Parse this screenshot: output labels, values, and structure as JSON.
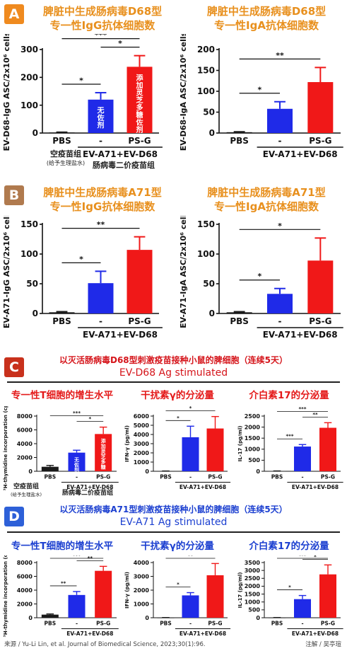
{
  "section_a": {
    "badge": "A",
    "title_igg": [
      "脾脏中生成肠病毒D68型",
      "专一性IgG抗体细胞数"
    ],
    "title_iga": [
      "脾脏中生成肠病毒D68型",
      "专一性IgA抗体细胞数"
    ],
    "igg_left_anno": [
      "空疫苗组",
      "(给予生理盐水)"
    ],
    "igg_right_anno": "肠病毒二价疫苗组"
  },
  "section_b": {
    "badge": "B",
    "title_igg": [
      "脾脏中生成肠病毒A71型",
      "专一性IgG抗体细胞数"
    ],
    "title_iga": [
      "脾脏中生成肠病毒A71型",
      "专一性IgA抗体细胞数"
    ]
  },
  "section_c": {
    "badge": "C",
    "banner_cn": "以灭活肠病毒D68型刺激疫苗接种小鼠的脾细胞（连续5天）",
    "banner_en": "EV-D68 Ag stimulated",
    "sub1": "专一性T细胞的增生水平",
    "sub2": "干扰素γ的分泌量",
    "sub3": "介白素17的分泌量",
    "left_anno": [
      "空疫苗组",
      "(给予生理盐水)"
    ],
    "right_anno": "肠病毒二价疫苗组"
  },
  "section_d": {
    "badge": "D",
    "banner_cn": "以灭活肠病毒A71型刺激疫苗接种小鼠的脾细胞（连续5天）",
    "banner_en": "EV-A71 Ag stimulated",
    "sub1": "专一性T细胞的增生水平",
    "sub2": "干扰素γ的分泌量",
    "sub3": "介白素17的分泌量"
  },
  "footer": {
    "source": "来源 / Yu-Li Lin, et al. Journal of Biomedical Science, 2023;30(1):96.",
    "annotator": "注解 / 吴亭瑄"
  },
  "colors": {
    "pbs": "#1a1a1a",
    "no_adjuvant": "#1f2ae8",
    "psg": "#f01818",
    "badge_orange": "#ef8a1f",
    "badge_brown": "#b07a4e",
    "badge_red": "#c8311c",
    "badge_blue": "#2d60d8"
  },
  "chart_data": [
    {
      "id": "a_igg",
      "type": "bar",
      "ylabel": "EV-D68-IgG ASC/2x10⁶ cells",
      "ylim": [
        0,
        300
      ],
      "yticks": [
        0,
        100,
        200,
        300
      ],
      "categories": [
        "PBS",
        "-",
        "PS-G"
      ],
      "group_label": "EV-A71+EV-D68",
      "values": [
        2,
        120,
        238
      ],
      "errors": [
        1,
        25,
        40
      ],
      "bar_texts": [
        "",
        "无佐剂",
        "添加灵芝多糖佐剂"
      ],
      "significance": [
        [
          "PBS",
          "-",
          "*"
        ],
        [
          "PBS",
          "PS-G",
          "***"
        ],
        [
          "-",
          "PS-G",
          "*"
        ]
      ]
    },
    {
      "id": "a_iga",
      "type": "bar",
      "ylabel": "EV-D68-IgA ASC/2x10⁶ cells",
      "ylim": [
        0,
        200
      ],
      "yticks": [
        0,
        50,
        100,
        150,
        200
      ],
      "categories": [
        "PBS",
        "-",
        "PS-G"
      ],
      "group_label": "EV-A71+EV-D68",
      "values": [
        2,
        58,
        122
      ],
      "errors": [
        1,
        17,
        35
      ],
      "significance": [
        [
          "PBS",
          "-",
          "*"
        ],
        [
          "PBS",
          "PS-G",
          "**"
        ]
      ]
    },
    {
      "id": "b_igg",
      "type": "bar",
      "ylabel": "EV-A71-IgG ASC/2x10⁶ cells",
      "ylim": [
        0,
        150
      ],
      "yticks": [
        0,
        50,
        100,
        150
      ],
      "categories": [
        "PBS",
        "-",
        "PS-G"
      ],
      "group_label": "EV-A71+EV-D68",
      "values": [
        2,
        51,
        107
      ],
      "errors": [
        1,
        20,
        22
      ],
      "significance": [
        [
          "PBS",
          "-",
          "*"
        ],
        [
          "PBS",
          "PS-G",
          "**"
        ]
      ]
    },
    {
      "id": "b_iga",
      "type": "bar",
      "ylabel": "EV-A71-IgA ASC/2x10⁶ cells",
      "ylim": [
        0,
        150
      ],
      "yticks": [
        0,
        50,
        100,
        150
      ],
      "categories": [
        "PBS",
        "-",
        "PS-G"
      ],
      "group_label": "EV-A71+EV-D68",
      "values": [
        2,
        33,
        89
      ],
      "errors": [
        1,
        9,
        38
      ],
      "significance": [
        [
          "PBS",
          "-",
          "*"
        ],
        [
          "PBS",
          "PS-G",
          "*"
        ]
      ]
    },
    {
      "id": "c_thy",
      "type": "bar",
      "ylabel": "³H-thymidine incorporation (cpm)",
      "ylim": [
        0,
        8000
      ],
      "yticks": [
        0,
        2000,
        4000,
        6000,
        8000
      ],
      "categories": [
        "PBS",
        "-",
        "PS-G"
      ],
      "group_label": "EV-A71+EV-D68",
      "values": [
        650,
        2700,
        5400
      ],
      "errors": [
        200,
        350,
        1000
      ],
      "bar_texts": [
        "",
        "无佐剂",
        "添加灵芝多糖"
      ],
      "significance": [
        [
          "PBS",
          "PS-G",
          "***"
        ],
        [
          "-",
          "PS-G",
          "*"
        ]
      ]
    },
    {
      "id": "c_ifn",
      "type": "bar",
      "ylabel": "IFN-γ (pg/ml)",
      "ylim": [
        0,
        6000
      ],
      "yticks": [
        0,
        1000,
        2000,
        3000,
        4000,
        5000,
        6000
      ],
      "categories": [
        "PBS",
        "-",
        "PS-G"
      ],
      "group_label": "EV-A71+EV-D68",
      "values": [
        20,
        3700,
        4650
      ],
      "errors": [
        10,
        1200,
        1300
      ],
      "significance": [
        [
          "PBS",
          "-",
          "*"
        ],
        [
          "PBS",
          "PS-G",
          "*"
        ]
      ]
    },
    {
      "id": "c_il17",
      "type": "bar",
      "ylabel": "IL-17 (pg/ml)",
      "ylim": [
        0,
        2500
      ],
      "yticks": [
        0,
        500,
        1000,
        1500,
        2000,
        2500
      ],
      "categories": [
        "PBS",
        "-",
        "PS-G"
      ],
      "group_label": "EV-A71+EV-D68",
      "values": [
        10,
        1120,
        1970
      ],
      "errors": [
        5,
        90,
        230
      ],
      "significance": [
        [
          "PBS",
          "-",
          "***"
        ],
        [
          "PBS",
          "PS-G",
          "***"
        ],
        [
          "-",
          "PS-G",
          "**"
        ]
      ]
    },
    {
      "id": "d_thy",
      "type": "bar",
      "ylabel": "³H-thymidine incorporation (cpm)",
      "ylim": [
        0,
        8000
      ],
      "yticks": [
        0,
        2000,
        4000,
        6000,
        8000
      ],
      "categories": [
        "PBS",
        "-",
        "PS-G"
      ],
      "group_label": "EV-A71+EV-D68",
      "values": [
        450,
        3300,
        6800
      ],
      "errors": [
        100,
        500,
        650
      ],
      "significance": [
        [
          "PBS",
          "-",
          "**"
        ],
        [
          "PBS",
          "PS-G",
          "***"
        ],
        [
          "-",
          "PS-G",
          "**"
        ]
      ]
    },
    {
      "id": "d_ifn",
      "type": "bar",
      "ylabel": "IFN-γ (pg/ml)",
      "ylim": [
        0,
        4000
      ],
      "yticks": [
        0,
        1000,
        2000,
        3000,
        4000
      ],
      "categories": [
        "PBS",
        "-",
        "PS-G"
      ],
      "group_label": "EV-A71+EV-D68",
      "values": [
        10,
        1620,
        3080
      ],
      "errors": [
        5,
        200,
        850
      ],
      "significance": [
        [
          "PBS",
          "-",
          "*"
        ],
        [
          "PBS",
          "PS-G",
          "**"
        ]
      ]
    },
    {
      "id": "d_il17",
      "type": "bar",
      "ylabel": "IL-17 (pg/ml)",
      "ylim": [
        0,
        3500
      ],
      "yticks": [
        0,
        500,
        1000,
        1500,
        2000,
        2500,
        3000,
        3500
      ],
      "categories": [
        "PBS",
        "-",
        "PS-G"
      ],
      "group_label": "EV-A71+EV-D68",
      "values": [
        10,
        1180,
        2750
      ],
      "errors": [
        5,
        230,
        600
      ],
      "significance": [
        [
          "PBS",
          "-",
          "*"
        ],
        [
          "PBS",
          "PS-G",
          "***"
        ],
        [
          "-",
          "PS-G",
          "*"
        ]
      ]
    }
  ]
}
